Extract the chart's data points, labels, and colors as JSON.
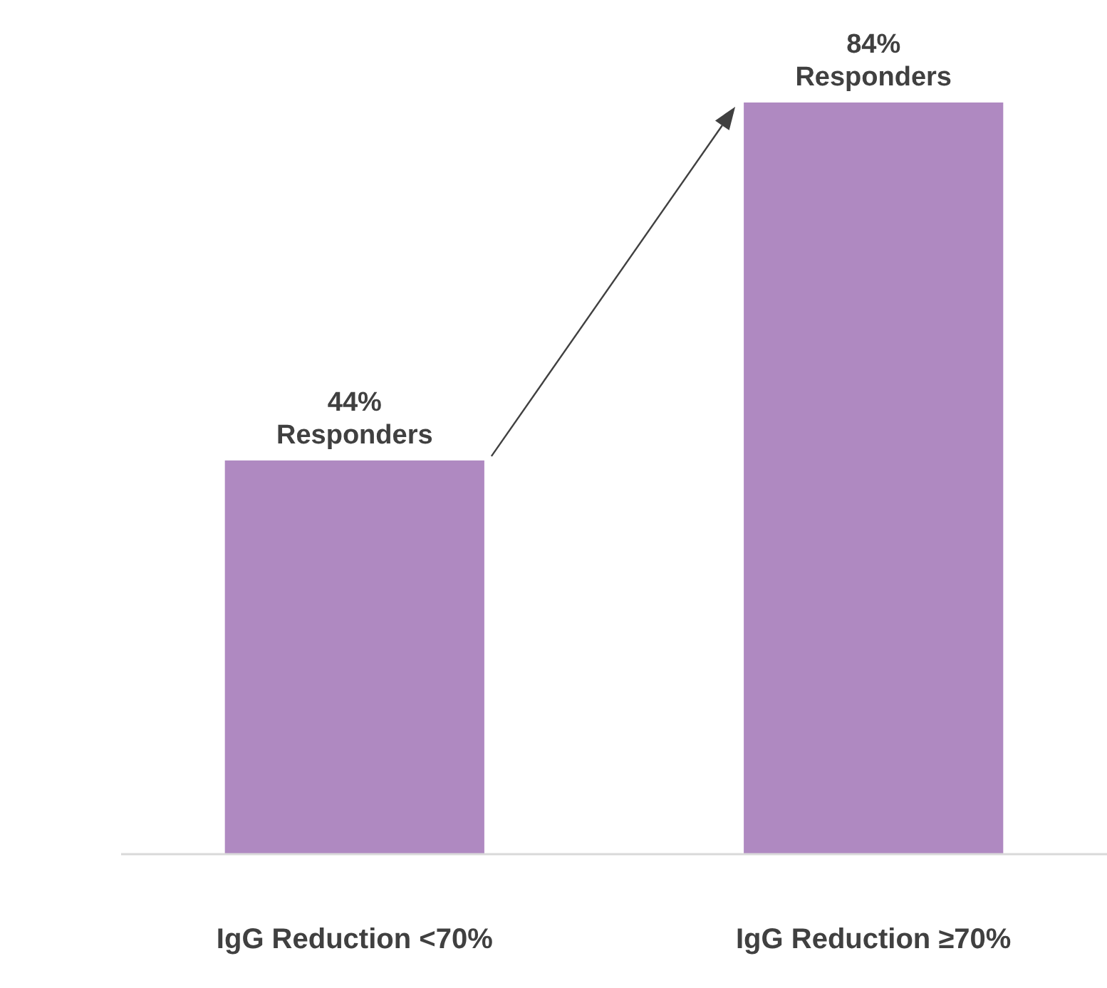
{
  "chart_data": {
    "type": "bar",
    "categories": [
      "IgG Reduction <70%",
      "IgG Reduction ≥70%"
    ],
    "values": [
      44,
      84
    ],
    "color": "#af89c1",
    "value_labels": [
      "44%\nResponders",
      "84%\nResponders"
    ]
  }
}
